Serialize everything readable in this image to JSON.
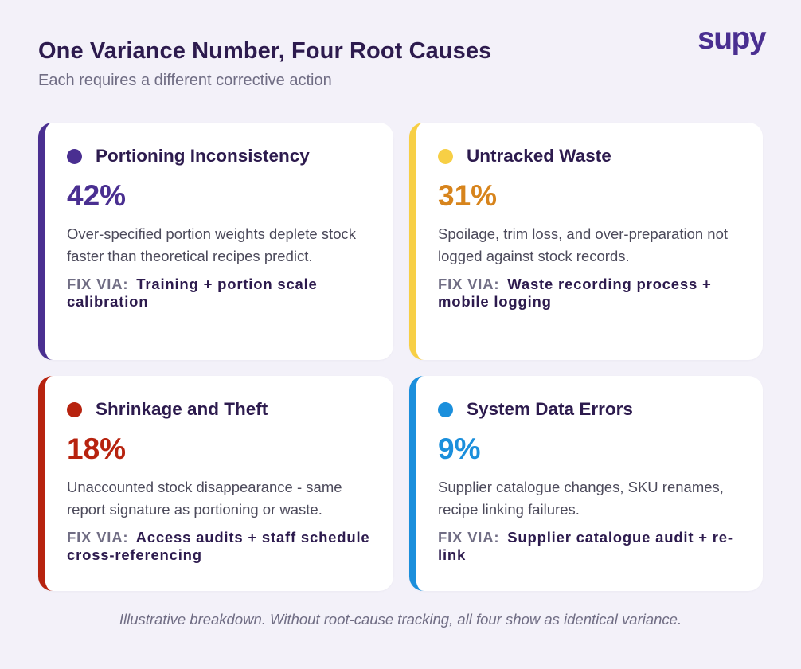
{
  "header": {
    "title": "One Variance Number, Four Root Causes",
    "subtitle": "Each requires a different corrective action"
  },
  "brand": {
    "logo_text": "supy",
    "color": "#4a2f91"
  },
  "fix_label": "FIX VIA:",
  "cards": [
    {
      "title": "Portioning Inconsistency",
      "percent": "42%",
      "description": "Over-specified portion weights deplete stock faster than theoretical recipes predict.",
      "fix": "Training + portion scale calibration",
      "accent_color": "#4a2f91",
      "dot_color": "#4a2f91",
      "percent_color": "#4a2f91"
    },
    {
      "title": "Untracked Waste",
      "percent": "31%",
      "description": "Spoilage, trim loss, and over-preparation not logged against stock records.",
      "fix": "Waste recording process + mobile logging",
      "accent_color": "#f7cf45",
      "dot_color": "#f7cf45",
      "percent_color": "#d7841c"
    },
    {
      "title": "Shrinkage and Theft",
      "percent": "18%",
      "description": "Unaccounted stock disappearance - same report signature as portioning or waste.",
      "fix": "Access audits + staff schedule cross-referencing",
      "accent_color": "#b7230f",
      "dot_color": "#b7230f",
      "percent_color": "#b7230f"
    },
    {
      "title": "System Data Errors",
      "percent": "9%",
      "description": "Supplier catalogue changes, SKU renames, recipe linking failures.",
      "fix": "Supplier catalogue audit + re-link",
      "accent_color": "#1b8fdc",
      "dot_color": "#1b8fdc",
      "percent_color": "#1b8fdc"
    }
  ],
  "footer": "Illustrative breakdown. Without root-cause tracking, all four show as identical variance."
}
